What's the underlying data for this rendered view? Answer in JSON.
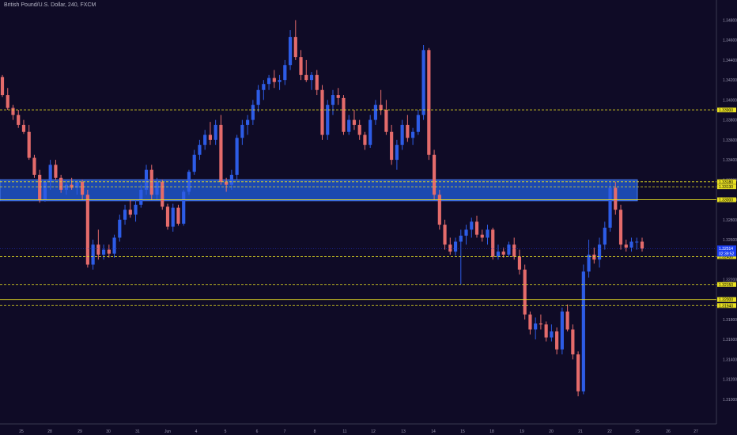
{
  "header": {
    "title": "British Pound/U.S. Dollar, 240, FXCM"
  },
  "colors": {
    "background": "#0f0b26",
    "up": "#2d5ce6",
    "down": "#e46b6b",
    "level": "#e8e022",
    "zone_fill": "#1f55c9",
    "price_tag_bg": "#e8e022",
    "current_tag_bg": "#1a3df0",
    "axis_text": "#9a98b0"
  },
  "chart_data": {
    "type": "candlestick",
    "title": "British Pound/U.S. Dollar, 240, FXCM",
    "ylim": [
      1.3088,
      1.3497
    ],
    "y_ticks": [
      1.31,
      1.312,
      1.314,
      1.316,
      1.318,
      1.322,
      1.326,
      1.328,
      1.33,
      1.332,
      1.334,
      1.336,
      1.338,
      1.34,
      1.342,
      1.344,
      1.346,
      1.348
    ],
    "y_tick_labels": [
      "1.31000",
      "1.31200",
      "1.31400",
      "1.31600",
      "1.31800",
      "1.32200",
      "1.32600",
      "1.32800",
      "1.33000",
      "1.33200",
      "1.33400",
      "1.33600",
      "1.33800",
      "1.34000",
      "1.34200",
      "1.34400",
      "1.34600",
      "1.34800"
    ],
    "x_labels": [
      "25",
      "28",
      "29",
      "30",
      "31",
      "Jun",
      "4",
      "5",
      "6",
      "7",
      "8",
      "11",
      "12",
      "13",
      "14",
      "15",
      "18",
      "19",
      "20",
      "21",
      "22",
      "25",
      "26",
      "27"
    ],
    "levels": [
      {
        "price": 1.339,
        "label": "1.33900",
        "style": "dashed"
      },
      {
        "price": 1.3318,
        "label": "1.33180",
        "style": "dashed"
      },
      {
        "price": 1.3313,
        "label": "1.33130",
        "style": "dashed"
      },
      {
        "price": 1.33,
        "label": "1.33000",
        "style": "solid"
      },
      {
        "price": 1.3243,
        "label": "1.32430",
        "style": "dashed"
      },
      {
        "price": 1.3215,
        "label": "1.32150",
        "style": "dashed"
      },
      {
        "price": 1.32,
        "label": "1.32000",
        "style": "solid"
      },
      {
        "price": 1.3194,
        "label": "1.31940",
        "style": "dashed"
      }
    ],
    "zone": {
      "top": 1.332,
      "bottom": 1.3299
    },
    "current_price": {
      "price": 1.3251,
      "label": "1.32514",
      "countdown": "02:39:52"
    },
    "candles": [
      [
        1.3423,
        1.3425,
        1.3403,
        1.3405
      ],
      [
        1.3405,
        1.3412,
        1.339,
        1.3392
      ],
      [
        1.3392,
        1.3395,
        1.338,
        1.3385
      ],
      [
        1.3385,
        1.339,
        1.3372,
        1.3375
      ],
      [
        1.3375,
        1.338,
        1.3366,
        1.3368
      ],
      [
        1.3368,
        1.3375,
        1.334,
        1.3342
      ],
      [
        1.3342,
        1.3345,
        1.3322,
        1.3325
      ],
      [
        1.3325,
        1.333,
        1.3297,
        1.33
      ],
      [
        1.33,
        1.332,
        1.3298,
        1.3318
      ],
      [
        1.3318,
        1.334,
        1.331,
        1.3335
      ],
      [
        1.3335,
        1.334,
        1.332,
        1.3322
      ],
      [
        1.3322,
        1.3325,
        1.3307,
        1.331
      ],
      [
        1.331,
        1.332,
        1.3305,
        1.3315
      ],
      [
        1.3315,
        1.3322,
        1.331,
        1.3312
      ],
      [
        1.3312,
        1.332,
        1.3305,
        1.3318
      ],
      [
        1.3318,
        1.332,
        1.33,
        1.3305
      ],
      [
        1.3305,
        1.331,
        1.3232,
        1.3235
      ],
      [
        1.3235,
        1.326,
        1.323,
        1.3255
      ],
      [
        1.3255,
        1.327,
        1.324,
        1.3245
      ],
      [
        1.3245,
        1.3255,
        1.324,
        1.325
      ],
      [
        1.325,
        1.3255,
        1.3242,
        1.3246
      ],
      [
        1.3246,
        1.3265,
        1.3242,
        1.3262
      ],
      [
        1.3262,
        1.3285,
        1.3258,
        1.328
      ],
      [
        1.328,
        1.3295,
        1.3275,
        1.329
      ],
      [
        1.329,
        1.33,
        1.3282,
        1.3285
      ],
      [
        1.3285,
        1.33,
        1.3278,
        1.3295
      ],
      [
        1.3295,
        1.3315,
        1.3292,
        1.331
      ],
      [
        1.331,
        1.3335,
        1.3305,
        1.333
      ],
      [
        1.333,
        1.3335,
        1.33,
        1.3305
      ],
      [
        1.3305,
        1.3322,
        1.33,
        1.3318
      ],
      [
        1.3318,
        1.332,
        1.329,
        1.3293
      ],
      [
        1.3293,
        1.3296,
        1.327,
        1.3273
      ],
      [
        1.3273,
        1.3296,
        1.3268,
        1.3292
      ],
      [
        1.3292,
        1.3295,
        1.3274,
        1.3276
      ],
      [
        1.3276,
        1.331,
        1.3274,
        1.3308
      ],
      [
        1.3308,
        1.333,
        1.3305,
        1.3328
      ],
      [
        1.3328,
        1.335,
        1.3325,
        1.3345
      ],
      [
        1.3345,
        1.336,
        1.334,
        1.3355
      ],
      [
        1.3355,
        1.337,
        1.335,
        1.3365
      ],
      [
        1.3365,
        1.3378,
        1.3355,
        1.336
      ],
      [
        1.336,
        1.338,
        1.3355,
        1.3375
      ],
      [
        1.3375,
        1.3385,
        1.3315,
        1.3318
      ],
      [
        1.3318,
        1.3322,
        1.3308,
        1.3315
      ],
      [
        1.3315,
        1.333,
        1.331,
        1.3325
      ],
      [
        1.3325,
        1.3365,
        1.332,
        1.3362
      ],
      [
        1.3362,
        1.338,
        1.3355,
        1.3375
      ],
      [
        1.3375,
        1.3385,
        1.3365,
        1.338
      ],
      [
        1.338,
        1.34,
        1.3375,
        1.3395
      ],
      [
        1.3395,
        1.3415,
        1.3388,
        1.341
      ],
      [
        1.341,
        1.342,
        1.34,
        1.3416
      ],
      [
        1.3416,
        1.3425,
        1.341,
        1.3422
      ],
      [
        1.3422,
        1.343,
        1.3412,
        1.3418
      ],
      [
        1.3418,
        1.3425,
        1.341,
        1.342
      ],
      [
        1.342,
        1.344,
        1.3415,
        1.3435
      ],
      [
        1.3435,
        1.347,
        1.343,
        1.3463
      ],
      [
        1.3463,
        1.348,
        1.344,
        1.3443
      ],
      [
        1.3443,
        1.345,
        1.342,
        1.3425
      ],
      [
        1.3425,
        1.344,
        1.3418,
        1.342
      ],
      [
        1.342,
        1.3428,
        1.341,
        1.3425
      ],
      [
        1.3425,
        1.343,
        1.3405,
        1.341
      ],
      [
        1.341,
        1.3415,
        1.336,
        1.3365
      ],
      [
        1.3365,
        1.34,
        1.336,
        1.3395
      ],
      [
        1.3395,
        1.341,
        1.3385,
        1.3405
      ],
      [
        1.3405,
        1.3412,
        1.3395,
        1.3402
      ],
      [
        1.3402,
        1.3405,
        1.3365,
        1.3368
      ],
      [
        1.3368,
        1.3385,
        1.3365,
        1.338
      ],
      [
        1.338,
        1.339,
        1.337,
        1.3375
      ],
      [
        1.3375,
        1.338,
        1.336,
        1.3365
      ],
      [
        1.3365,
        1.3368,
        1.335,
        1.3355
      ],
      [
        1.3355,
        1.3385,
        1.3352,
        1.338
      ],
      [
        1.338,
        1.34,
        1.3375,
        1.3395
      ],
      [
        1.3395,
        1.341,
        1.3385,
        1.339
      ],
      [
        1.339,
        1.34,
        1.3365,
        1.3368
      ],
      [
        1.3368,
        1.3375,
        1.3335,
        1.334
      ],
      [
        1.334,
        1.336,
        1.333,
        1.3355
      ],
      [
        1.3355,
        1.338,
        1.335,
        1.3375
      ],
      [
        1.3375,
        1.3385,
        1.3358,
        1.3362
      ],
      [
        1.3362,
        1.3372,
        1.3355,
        1.3368
      ],
      [
        1.3368,
        1.339,
        1.3365,
        1.3385
      ],
      [
        1.3385,
        1.3455,
        1.338,
        1.345
      ],
      [
        1.345,
        1.3452,
        1.334,
        1.3345
      ],
      [
        1.3345,
        1.335,
        1.33,
        1.3305
      ],
      [
        1.3305,
        1.331,
        1.327,
        1.3275
      ],
      [
        1.3275,
        1.328,
        1.325,
        1.3255
      ],
      [
        1.3255,
        1.3262,
        1.3245,
        1.3248
      ],
      [
        1.3248,
        1.3262,
        1.3244,
        1.3258
      ],
      [
        1.3258,
        1.327,
        1.3215,
        1.3264
      ],
      [
        1.3264,
        1.3275,
        1.3255,
        1.327
      ],
      [
        1.327,
        1.3282,
        1.3262,
        1.3278
      ],
      [
        1.3278,
        1.3284,
        1.3262,
        1.3265
      ],
      [
        1.3265,
        1.327,
        1.3258,
        1.3262
      ],
      [
        1.3262,
        1.3275,
        1.3255,
        1.327
      ],
      [
        1.327,
        1.3272,
        1.324,
        1.3243
      ],
      [
        1.3243,
        1.3255,
        1.324,
        1.3248
      ],
      [
        1.3248,
        1.3252,
        1.3242,
        1.3245
      ],
      [
        1.3245,
        1.3258,
        1.3243,
        1.3255
      ],
      [
        1.3255,
        1.3262,
        1.324,
        1.3243
      ],
      [
        1.3243,
        1.325,
        1.3225,
        1.323
      ],
      [
        1.323,
        1.3235,
        1.318,
        1.3185
      ],
      [
        1.3185,
        1.3188,
        1.3165,
        1.317
      ],
      [
        1.317,
        1.3182,
        1.316,
        1.3176
      ],
      [
        1.3176,
        1.3185,
        1.317,
        1.3175
      ],
      [
        1.3175,
        1.3178,
        1.3158,
        1.3162
      ],
      [
        1.3162,
        1.3175,
        1.3158,
        1.3168
      ],
      [
        1.3168,
        1.3172,
        1.3145,
        1.315
      ],
      [
        1.315,
        1.3192,
        1.3145,
        1.3188
      ],
      [
        1.3188,
        1.3195,
        1.3168,
        1.317
      ],
      [
        1.317,
        1.3175,
        1.314,
        1.3145
      ],
      [
        1.3145,
        1.3148,
        1.3103,
        1.3108
      ],
      [
        1.3108,
        1.3235,
        1.3105,
        1.3228
      ],
      [
        1.3228,
        1.326,
        1.3222,
        1.3245
      ],
      [
        1.3245,
        1.3252,
        1.3236,
        1.324
      ],
      [
        1.324,
        1.3262,
        1.3232,
        1.3255
      ],
      [
        1.3255,
        1.3278,
        1.325,
        1.3272
      ],
      [
        1.3272,
        1.3318,
        1.3268,
        1.3312
      ],
      [
        1.3312,
        1.3318,
        1.3285,
        1.329
      ],
      [
        1.329,
        1.3295,
        1.325,
        1.3255
      ],
      [
        1.3255,
        1.326,
        1.3248,
        1.3252
      ],
      [
        1.3252,
        1.3262,
        1.3248,
        1.3258
      ],
      [
        1.3258,
        1.3262,
        1.325,
        1.3258
      ],
      [
        1.3258,
        1.3262,
        1.3248,
        1.3251
      ]
    ]
  }
}
